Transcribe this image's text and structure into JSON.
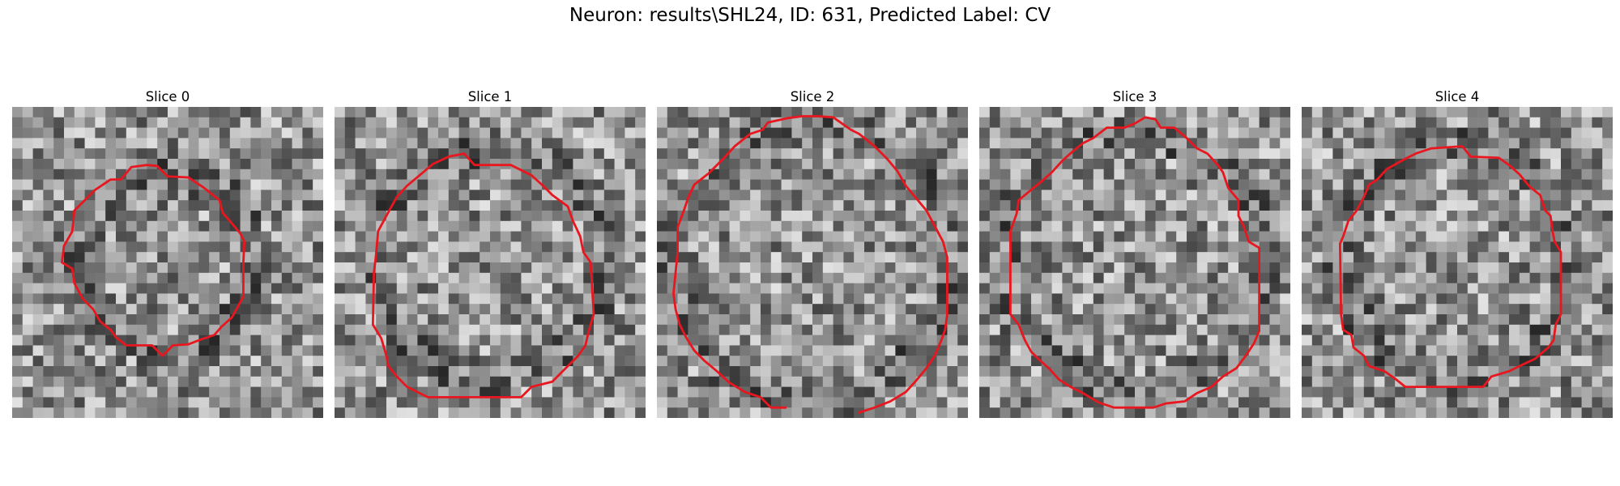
{
  "figure": {
    "title": "Neuron: results\\SHL24, ID: 631, Predicted Label: CV",
    "contour_color": "#e8171f",
    "image_colormap": "grayscale",
    "grid_resolution": 30
  },
  "slices": [
    {
      "label": "Slice 0",
      "contour_shape": "small irregular circle, centered slightly above middle"
    },
    {
      "label": "Slice 1",
      "contour_shape": "medium irregular polygon"
    },
    {
      "label": "Slice 2",
      "contour_shape": "large circle clipped at bottom edge"
    },
    {
      "label": "Slice 3",
      "contour_shape": "large irregular polygon"
    },
    {
      "label": "Slice 4",
      "contour_shape": "medium irregular polygon"
    }
  ]
}
